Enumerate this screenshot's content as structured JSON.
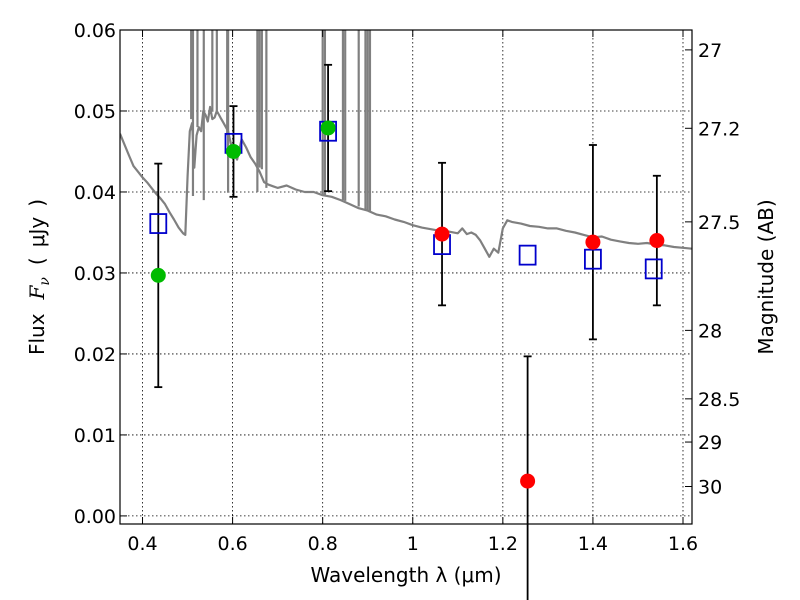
{
  "chart_data": {
    "type": "scatter",
    "xlabel": "Wavelength  λ (μm)",
    "ylabel": {
      "prefix": "Flux",
      "symbol": "F",
      "subscript": "ν",
      "unit_open": "(",
      "unit": "μJy",
      "unit_close": ")"
    },
    "right_ylabel": "Magnitude (AB)",
    "xlim": [
      0.35,
      1.62
    ],
    "ylim": [
      -0.001,
      0.06
    ],
    "grid": true,
    "x_ticks": [
      {
        "v": 0.4,
        "label": "0.4"
      },
      {
        "v": 0.6,
        "label": "0.6"
      },
      {
        "v": 0.8,
        "label": "0.8"
      },
      {
        "v": 1.0,
        "label": "1"
      },
      {
        "v": 1.2,
        "label": "1.2"
      },
      {
        "v": 1.4,
        "label": "1.4"
      },
      {
        "v": 1.6,
        "label": "1.6"
      }
    ],
    "y_ticks": [
      {
        "v": 0.0,
        "label": "0.00"
      },
      {
        "v": 0.01,
        "label": "0.01"
      },
      {
        "v": 0.02,
        "label": "0.02"
      },
      {
        "v": 0.03,
        "label": "0.03"
      },
      {
        "v": 0.04,
        "label": "0.04"
      },
      {
        "v": 0.05,
        "label": "0.05"
      },
      {
        "v": 0.06,
        "label": "0.06"
      }
    ],
    "right_ticks": [
      {
        "v": 27,
        "label": "27"
      },
      {
        "v": 27.2,
        "label": "27.2"
      },
      {
        "v": 27.5,
        "label": "27.5"
      },
      {
        "v": 28,
        "label": "28"
      },
      {
        "v": 28.5,
        "label": "28.5"
      },
      {
        "v": 29,
        "label": "29"
      },
      {
        "v": 30,
        "label": "30"
      }
    ],
    "series": [
      {
        "kind": "model-sed",
        "color": "#808080",
        "points": [
          [
            0.35,
            0.0472
          ],
          [
            0.37,
            0.0445
          ],
          [
            0.38,
            0.0432
          ],
          [
            0.39,
            0.0425
          ],
          [
            0.4,
            0.0418
          ],
          [
            0.41,
            0.0412
          ],
          [
            0.42,
            0.0405
          ],
          [
            0.43,
            0.0398
          ],
          [
            0.44,
            0.0392
          ],
          [
            0.45,
            0.0385
          ],
          [
            0.46,
            0.0375
          ],
          [
            0.47,
            0.0366
          ],
          [
            0.48,
            0.0356
          ],
          [
            0.49,
            0.0349
          ],
          [
            0.495,
            0.0347
          ],
          [
            0.5,
            0.042
          ],
          [
            0.505,
            0.0475
          ],
          [
            0.51,
            0.0485
          ],
          [
            0.515,
            0.043
          ],
          [
            0.52,
            0.047
          ],
          [
            0.525,
            0.048
          ],
          [
            0.53,
            0.0475
          ],
          [
            0.535,
            0.05
          ],
          [
            0.54,
            0.0495
          ],
          [
            0.545,
            0.0487
          ],
          [
            0.55,
            0.0505
          ],
          [
            0.555,
            0.049
          ],
          [
            0.56,
            0.0492
          ],
          [
            0.565,
            0.05
          ],
          [
            0.57,
            0.0495
          ],
          [
            0.575,
            0.049
          ],
          [
            0.58,
            0.0485
          ],
          [
            0.59,
            0.0475
          ],
          [
            0.6,
            0.045
          ],
          [
            0.61,
            0.044
          ],
          [
            0.62,
            0.0465
          ],
          [
            0.63,
            0.0455
          ],
          [
            0.64,
            0.0443
          ],
          [
            0.65,
            0.0435
          ],
          [
            0.66,
            0.0425
          ],
          [
            0.67,
            0.0412
          ],
          [
            0.68,
            0.0409
          ],
          [
            0.69,
            0.0407
          ],
          [
            0.7,
            0.0405
          ],
          [
            0.72,
            0.0408
          ],
          [
            0.74,
            0.0403
          ],
          [
            0.76,
            0.04
          ],
          [
            0.78,
            0.04
          ],
          [
            0.8,
            0.0396
          ],
          [
            0.82,
            0.0394
          ],
          [
            0.84,
            0.039
          ],
          [
            0.86,
            0.0385
          ],
          [
            0.88,
            0.038
          ],
          [
            0.9,
            0.0377
          ],
          [
            0.92,
            0.0372
          ],
          [
            0.94,
            0.037
          ],
          [
            0.96,
            0.0366
          ],
          [
            0.98,
            0.0363
          ],
          [
            1.0,
            0.0359
          ],
          [
            1.02,
            0.0356
          ],
          [
            1.04,
            0.0354
          ],
          [
            1.06,
            0.0352
          ],
          [
            1.08,
            0.0351
          ],
          [
            1.1,
            0.0349
          ],
          [
            1.11,
            0.0355
          ],
          [
            1.12,
            0.0348
          ],
          [
            1.13,
            0.035
          ],
          [
            1.14,
            0.0347
          ],
          [
            1.15,
            0.034
          ],
          [
            1.16,
            0.033
          ],
          [
            1.17,
            0.032
          ],
          [
            1.18,
            0.033
          ],
          [
            1.19,
            0.0325
          ],
          [
            1.2,
            0.0355
          ],
          [
            1.21,
            0.0365
          ],
          [
            1.22,
            0.0363
          ],
          [
            1.24,
            0.0361
          ],
          [
            1.26,
            0.0358
          ],
          [
            1.28,
            0.0357
          ],
          [
            1.3,
            0.0355
          ],
          [
            1.32,
            0.0355
          ],
          [
            1.34,
            0.0352
          ],
          [
            1.36,
            0.035
          ],
          [
            1.38,
            0.0347
          ],
          [
            1.4,
            0.0344
          ],
          [
            1.42,
            0.0345
          ],
          [
            1.44,
            0.0341
          ],
          [
            1.46,
            0.0339
          ],
          [
            1.48,
            0.0337
          ],
          [
            1.5,
            0.0336
          ],
          [
            1.52,
            0.0337
          ],
          [
            1.54,
            0.0335
          ],
          [
            1.56,
            0.0334
          ],
          [
            1.58,
            0.0332
          ],
          [
            1.6,
            0.0331
          ],
          [
            1.62,
            0.033
          ]
        ],
        "spikes": [
          [
            0.508,
            0.049
          ],
          [
            0.512,
            0.0395
          ],
          [
            0.522,
            0.048
          ],
          [
            0.536,
            0.039
          ],
          [
            0.555,
            0.05
          ],
          [
            0.565,
            0.05
          ],
          [
            0.588,
            0.047
          ],
          [
            0.59,
            0.0399
          ],
          [
            0.655,
            0.04
          ],
          [
            0.66,
            0.043
          ],
          [
            0.665,
            0.0428
          ],
          [
            0.675,
            0.0405
          ],
          [
            0.8,
            0.0395
          ],
          [
            0.805,
            0.0396
          ],
          [
            0.845,
            0.039
          ],
          [
            0.85,
            0.0389
          ],
          [
            0.88,
            0.0382
          ],
          [
            0.895,
            0.0378
          ],
          [
            0.9,
            0.0376
          ],
          [
            0.905,
            0.0375
          ]
        ]
      },
      {
        "kind": "model-bands",
        "marker": "open-square",
        "color": "#0000cc",
        "points": [
          [
            0.435,
            0.0361
          ],
          [
            0.602,
            0.046
          ],
          [
            0.812,
            0.0475
          ],
          [
            1.065,
            0.0335
          ],
          [
            1.255,
            0.0322
          ],
          [
            1.4,
            0.0317
          ],
          [
            1.535,
            0.0305
          ]
        ]
      },
      {
        "kind": "photometry-optical",
        "marker": "filled-circle",
        "color": "#00bb00",
        "points": [
          [
            0.435,
            0.0297,
            0.0138
          ],
          [
            0.602,
            0.045,
            0.0056
          ],
          [
            0.812,
            0.0479,
            0.0078
          ]
        ]
      },
      {
        "kind": "photometry-nir",
        "marker": "filled-circle",
        "color": "#ff0000",
        "points": [
          [
            1.065,
            0.0348,
            0.0088
          ],
          [
            1.255,
            0.0043,
            0.0154
          ],
          [
            1.4,
            0.0338,
            0.012
          ],
          [
            1.542,
            0.034,
            0.008
          ]
        ]
      }
    ]
  }
}
